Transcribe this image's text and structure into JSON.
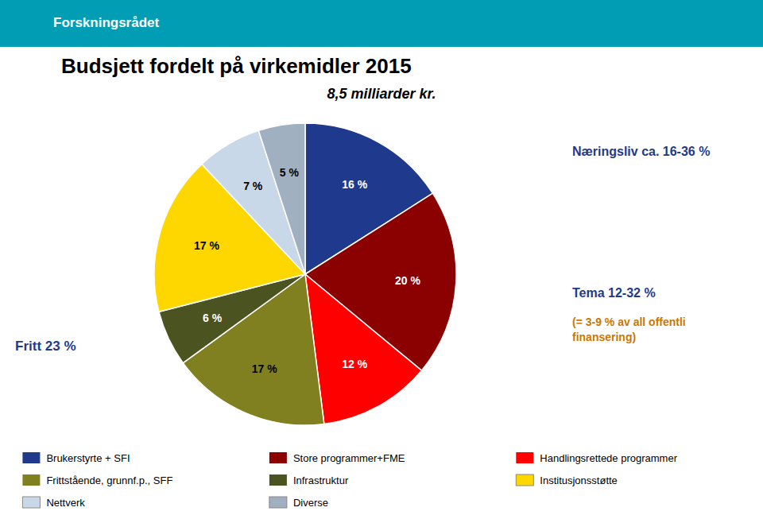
{
  "chart_data": {
    "type": "pie",
    "title": "Budsjett fordelt på virkemidler 2015",
    "subtitle": "8,5 milliarder kr.",
    "categories": [
      "Brukerstyrte + SFI",
      "Store programmer+FME",
      "Handlingsrettede programmer",
      "Frittstående, grunnf.p., SFF",
      "Infrastruktur",
      "Institusjonsstøtte",
      "Nettverk",
      "Diverse"
    ],
    "values": [
      16,
      20,
      12,
      17,
      6,
      17,
      7,
      5
    ],
    "value_labels": [
      "16 %",
      "20 %",
      "12 %",
      "17 %",
      "6 %",
      "17 %",
      "7 %",
      "5 %"
    ],
    "colors": [
      "#1F3A8C",
      "#8B0000",
      "#FF0000",
      "#808020",
      "#4B5320",
      "#FFD700",
      "#C8D8E8",
      "#A0B0C0"
    ],
    "data_labels": true,
    "legend": "bottom",
    "annotations": [
      {
        "text": "Forskningsrådet",
        "color": "#FFFFFF"
      },
      {
        "text": "Næringsliv ca. 16-36 %",
        "color": "#1F3A8C"
      },
      {
        "text": "Tema 12-32 %",
        "color": "#1F3A8C"
      },
      {
        "text": "(= 3-9 % av all offentli\nfinansering)",
        "color": "#CC7700"
      },
      {
        "text": "Fritt 23 %",
        "color": "#1F3A8C"
      }
    ]
  }
}
